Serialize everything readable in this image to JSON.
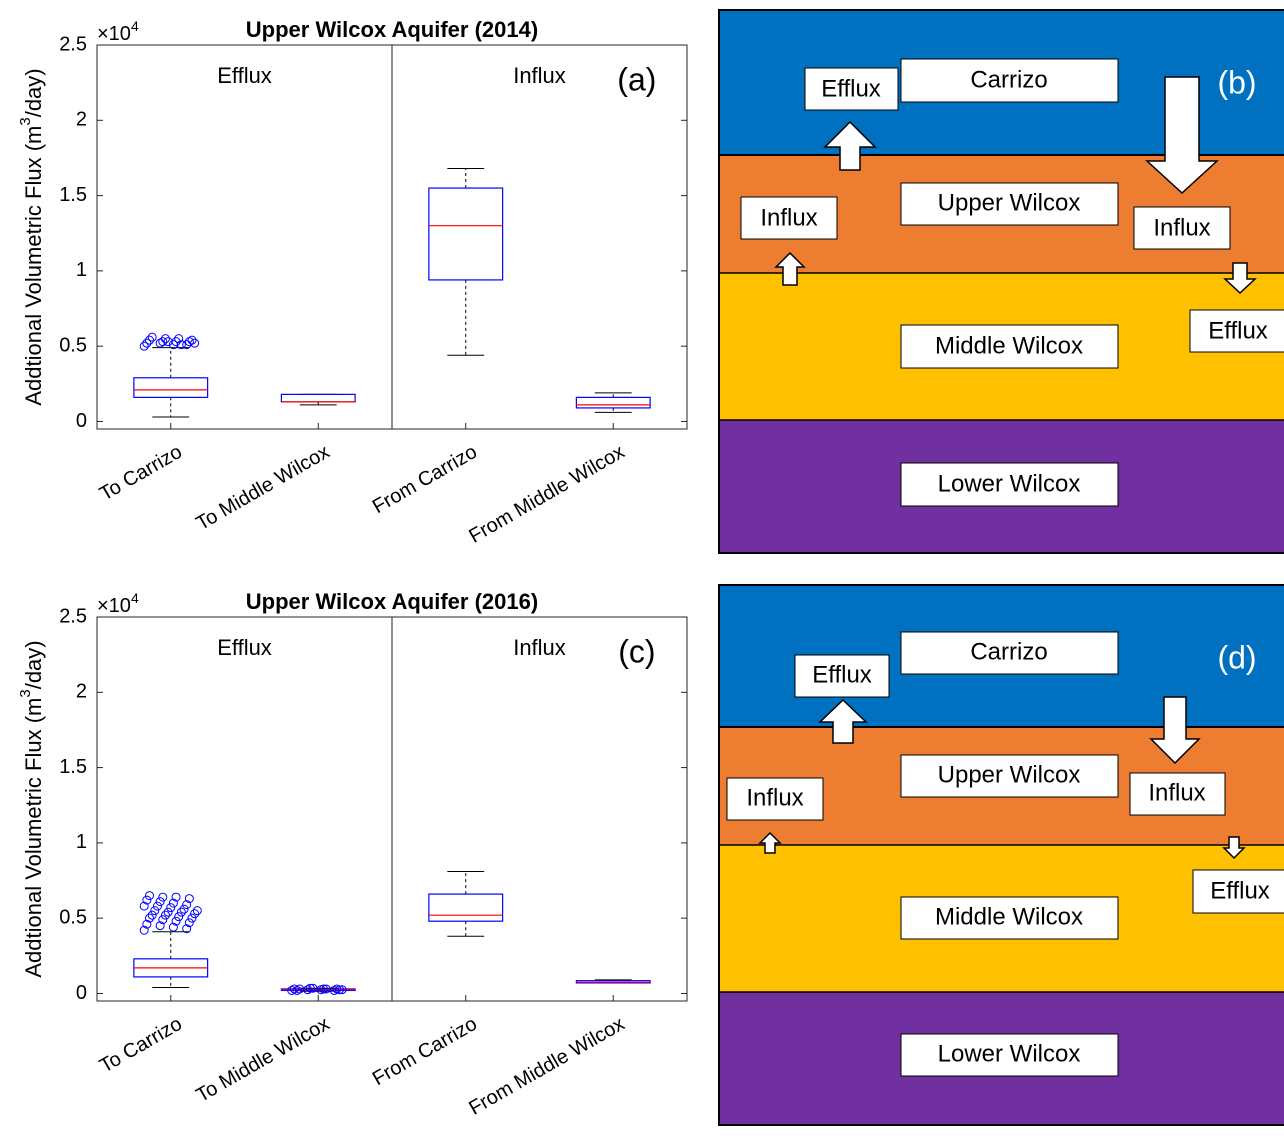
{
  "chart_data": [
    {
      "type": "box",
      "panel": "(a)",
      "title": "Upper Wilcox Aquifer (2014)",
      "ylabel": [
        "Addtional Volumetric Flux (m",
        "3",
        "/day)"
      ],
      "y_multiplier": [
        "×10",
        "4"
      ],
      "groups": [
        "Efflux",
        "Influx"
      ],
      "categories": [
        "To Carrizo",
        "To Middle Wilcox",
        "From Carrizo",
        "From Middle Wilcox"
      ],
      "boxes": [
        {
          "whislo": 0.03,
          "q1": 0.16,
          "median": 0.21,
          "q3": 0.29,
          "whishi": 0.49,
          "outliers": [
            0.5,
            0.51,
            0.51,
            0.52,
            0.52,
            0.53,
            0.53,
            0.53,
            0.54,
            0.54,
            0.55,
            0.55,
            0.56,
            0.52,
            0.51,
            0.53
          ]
        },
        {
          "whislo": 0.11,
          "q1": 0.13,
          "median": 0.13,
          "q3": 0.18,
          "whishi": 0.18,
          "outliers": []
        },
        {
          "whislo": 0.44,
          "q1": 0.94,
          "median": 1.3,
          "q3": 1.55,
          "whishi": 1.68,
          "outliers": []
        },
        {
          "whislo": 0.06,
          "q1": 0.09,
          "median": 0.11,
          "q3": 0.16,
          "whishi": 0.19,
          "outliers": []
        }
      ],
      "ylim": [
        -0.05,
        2.5
      ],
      "yticks": [
        0,
        0.5,
        1,
        1.5,
        2,
        2.5
      ],
      "box_color": "#0000ff",
      "median_color": "#ff0000"
    },
    {
      "type": "box",
      "panel": "(c)",
      "title": "Upper Wilcox Aquifer (2016)",
      "ylabel": [
        "Addtional Volumetric Flux (m",
        "3",
        "/day)"
      ],
      "y_multiplier": [
        "×10",
        "4"
      ],
      "groups": [
        "Efflux",
        "Influx"
      ],
      "categories": [
        "To Carrizo",
        "To Middle Wilcox",
        "From Carrizo",
        "From Middle Wilcox"
      ],
      "boxes": [
        {
          "whislo": 0.04,
          "q1": 0.11,
          "median": 0.17,
          "q3": 0.23,
          "whishi": 0.41,
          "outliers": [
            0.42,
            0.43,
            0.44,
            0.45,
            0.46,
            0.47,
            0.48,
            0.49,
            0.5,
            0.5,
            0.51,
            0.52,
            0.52,
            0.53,
            0.54,
            0.54,
            0.55,
            0.55,
            0.56,
            0.57,
            0.58,
            0.58,
            0.59,
            0.6,
            0.61,
            0.62,
            0.63,
            0.64,
            0.64,
            0.65
          ]
        },
        {
          "whislo": 0.015,
          "q1": 0.02,
          "median": 0.025,
          "q3": 0.03,
          "whishi": 0.035,
          "outliers": [
            0.02,
            0.02,
            0.025,
            0.025,
            0.03,
            0.03,
            0.03,
            0.035,
            0.02,
            0.025,
            0.03,
            0.035,
            0.03,
            0.025
          ]
        },
        {
          "whislo": 0.38,
          "q1": 0.48,
          "median": 0.52,
          "q3": 0.66,
          "whishi": 0.81,
          "outliers": []
        },
        {
          "whislo": 0.07,
          "q1": 0.07,
          "median": 0.075,
          "q3": 0.085,
          "whishi": 0.09,
          "outliers": []
        }
      ],
      "ylim": [
        -0.05,
        2.5
      ],
      "yticks": [
        0,
        0.5,
        1,
        1.5,
        2,
        2.5
      ],
      "box_color": "#0000ff",
      "median_color": "#ff0000"
    }
  ],
  "diagrams": [
    {
      "panel": "(b)",
      "layers": [
        "Carrizo",
        "Upper Wilcox",
        "Middle Wilcox",
        "Lower Wilcox"
      ],
      "flux_labels": [
        "Efflux",
        "Influx",
        "Influx",
        "Efflux"
      ]
    },
    {
      "panel": "(d)",
      "layers": [
        "Carrizo",
        "Upper Wilcox",
        "Middle Wilcox",
        "Lower Wilcox"
      ],
      "flux_labels": [
        "Efflux",
        "Influx",
        "Influx",
        "Efflux"
      ]
    }
  ]
}
